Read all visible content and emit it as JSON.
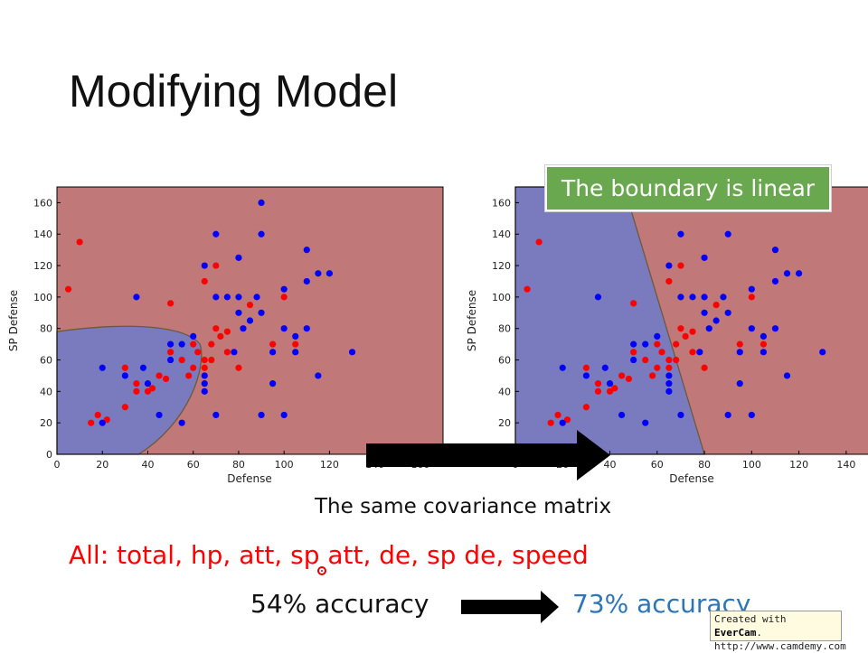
{
  "slide": {
    "title": "Modifying Model",
    "callout": "The boundary is linear",
    "caption": "The same covariance matrix",
    "features": "All: total, hp, att, sp att, de, sp de, speed",
    "accuracy_before": "54% accuracy",
    "accuracy_after": "73% accuracy",
    "watermark_line1_prefix": "Created with ",
    "watermark_brand": "EverCam",
    "watermark_line1_suffix": ".",
    "watermark_line2": "http://www.camdemy.com",
    "colors": {
      "title": "#111111",
      "features": "#ff0000",
      "accuracy_after": "#2e75b6",
      "callout_bg": "#6aa84f",
      "region_red": "#c07878",
      "region_blue": "#7a7abf",
      "point_red": "#ff0000",
      "point_blue": "#0000ff"
    }
  },
  "chart_data": [
    {
      "type": "scatter",
      "title": "",
      "xlabel": "Defense",
      "ylabel": "SP Defense",
      "xlim": [
        0,
        170
      ],
      "ylim": [
        0,
        170
      ],
      "xticks": [
        0,
        20,
        40,
        60,
        80,
        100,
        120,
        140,
        160
      ],
      "yticks": [
        0,
        20,
        40,
        60,
        80,
        100,
        120,
        140,
        160
      ],
      "boundary": "quadratic",
      "series": [
        {
          "color": "red",
          "points": [
            [
              5,
              105
            ],
            [
              10,
              135
            ],
            [
              15,
              20
            ],
            [
              18,
              25
            ],
            [
              22,
              22
            ],
            [
              30,
              30
            ],
            [
              30,
              55
            ],
            [
              35,
              45
            ],
            [
              35,
              40
            ],
            [
              40,
              40
            ],
            [
              42,
              42
            ],
            [
              45,
              50
            ],
            [
              48,
              48
            ],
            [
              50,
              96
            ],
            [
              50,
              65
            ],
            [
              55,
              60
            ],
            [
              58,
              50
            ],
            [
              60,
              55
            ],
            [
              60,
              70
            ],
            [
              62,
              65
            ],
            [
              65,
              110
            ],
            [
              65,
              60
            ],
            [
              65,
              55
            ],
            [
              68,
              70
            ],
            [
              68,
              60
            ],
            [
              70,
              120
            ],
            [
              70,
              80
            ],
            [
              72,
              75
            ],
            [
              75,
              65
            ],
            [
              75,
              78
            ],
            [
              80,
              55
            ],
            [
              85,
              95
            ],
            [
              95,
              70
            ],
            [
              100,
              100
            ],
            [
              105,
              70
            ]
          ]
        },
        {
          "color": "blue",
          "points": [
            [
              20,
              55
            ],
            [
              20,
              20
            ],
            [
              30,
              50
            ],
            [
              35,
              100
            ],
            [
              38,
              55
            ],
            [
              40,
              45
            ],
            [
              45,
              25
            ],
            [
              50,
              70
            ],
            [
              50,
              60
            ],
            [
              55,
              70
            ],
            [
              55,
              20
            ],
            [
              60,
              75
            ],
            [
              65,
              120
            ],
            [
              65,
              50
            ],
            [
              65,
              45
            ],
            [
              65,
              40
            ],
            [
              70,
              140
            ],
            [
              70,
              100
            ],
            [
              70,
              25
            ],
            [
              75,
              100
            ],
            [
              78,
              65
            ],
            [
              80,
              125
            ],
            [
              80,
              100
            ],
            [
              80,
              90
            ],
            [
              82,
              80
            ],
            [
              85,
              85
            ],
            [
              88,
              100
            ],
            [
              90,
              160
            ],
            [
              90,
              140
            ],
            [
              90,
              90
            ],
            [
              90,
              25
            ],
            [
              95,
              45
            ],
            [
              95,
              65
            ],
            [
              100,
              105
            ],
            [
              100,
              80
            ],
            [
              100,
              25
            ],
            [
              105,
              65
            ],
            [
              105,
              75
            ],
            [
              110,
              130
            ],
            [
              110,
              110
            ],
            [
              110,
              80
            ],
            [
              115,
              115
            ],
            [
              115,
              50
            ],
            [
              120,
              115
            ],
            [
              130,
              65
            ]
          ]
        }
      ]
    },
    {
      "type": "scatter",
      "title": "",
      "xlabel": "Defense",
      "ylabel": "SP Defense",
      "xlim": [
        0,
        150
      ],
      "ylim": [
        0,
        170
      ],
      "xticks": [
        0,
        20,
        40,
        60,
        80,
        100,
        120,
        140
      ],
      "yticks": [
        0,
        20,
        40,
        60,
        80,
        100,
        120,
        140,
        160
      ],
      "boundary": "linear",
      "series": [
        {
          "color": "red",
          "points": [
            [
              5,
              105
            ],
            [
              10,
              135
            ],
            [
              15,
              20
            ],
            [
              18,
              25
            ],
            [
              22,
              22
            ],
            [
              30,
              30
            ],
            [
              30,
              55
            ],
            [
              35,
              45
            ],
            [
              35,
              40
            ],
            [
              40,
              40
            ],
            [
              42,
              42
            ],
            [
              45,
              50
            ],
            [
              48,
              48
            ],
            [
              50,
              96
            ],
            [
              50,
              65
            ],
            [
              55,
              60
            ],
            [
              58,
              50
            ],
            [
              60,
              55
            ],
            [
              60,
              70
            ],
            [
              62,
              65
            ],
            [
              65,
              110
            ],
            [
              65,
              60
            ],
            [
              65,
              55
            ],
            [
              68,
              70
            ],
            [
              68,
              60
            ],
            [
              70,
              120
            ],
            [
              70,
              80
            ],
            [
              72,
              75
            ],
            [
              75,
              65
            ],
            [
              75,
              78
            ],
            [
              80,
              55
            ],
            [
              85,
              95
            ],
            [
              95,
              70
            ],
            [
              100,
              100
            ],
            [
              105,
              70
            ]
          ]
        },
        {
          "color": "blue",
          "points": [
            [
              20,
              55
            ],
            [
              20,
              20
            ],
            [
              30,
              50
            ],
            [
              35,
              100
            ],
            [
              38,
              55
            ],
            [
              40,
              45
            ],
            [
              45,
              25
            ],
            [
              50,
              70
            ],
            [
              50,
              60
            ],
            [
              55,
              70
            ],
            [
              55,
              20
            ],
            [
              60,
              75
            ],
            [
              65,
              120
            ],
            [
              65,
              50
            ],
            [
              65,
              45
            ],
            [
              65,
              40
            ],
            [
              70,
              140
            ],
            [
              70,
              100
            ],
            [
              70,
              25
            ],
            [
              75,
              100
            ],
            [
              78,
              65
            ],
            [
              80,
              125
            ],
            [
              80,
              100
            ],
            [
              80,
              90
            ],
            [
              82,
              80
            ],
            [
              85,
              85
            ],
            [
              88,
              100
            ],
            [
              90,
              160
            ],
            [
              90,
              140
            ],
            [
              90,
              90
            ],
            [
              90,
              25
            ],
            [
              95,
              45
            ],
            [
              95,
              65
            ],
            [
              100,
              105
            ],
            [
              100,
              80
            ],
            [
              100,
              25
            ],
            [
              105,
              65
            ],
            [
              105,
              75
            ],
            [
              110,
              130
            ],
            [
              110,
              110
            ],
            [
              110,
              80
            ],
            [
              115,
              115
            ],
            [
              115,
              50
            ],
            [
              120,
              115
            ],
            [
              130,
              65
            ]
          ]
        }
      ]
    }
  ]
}
